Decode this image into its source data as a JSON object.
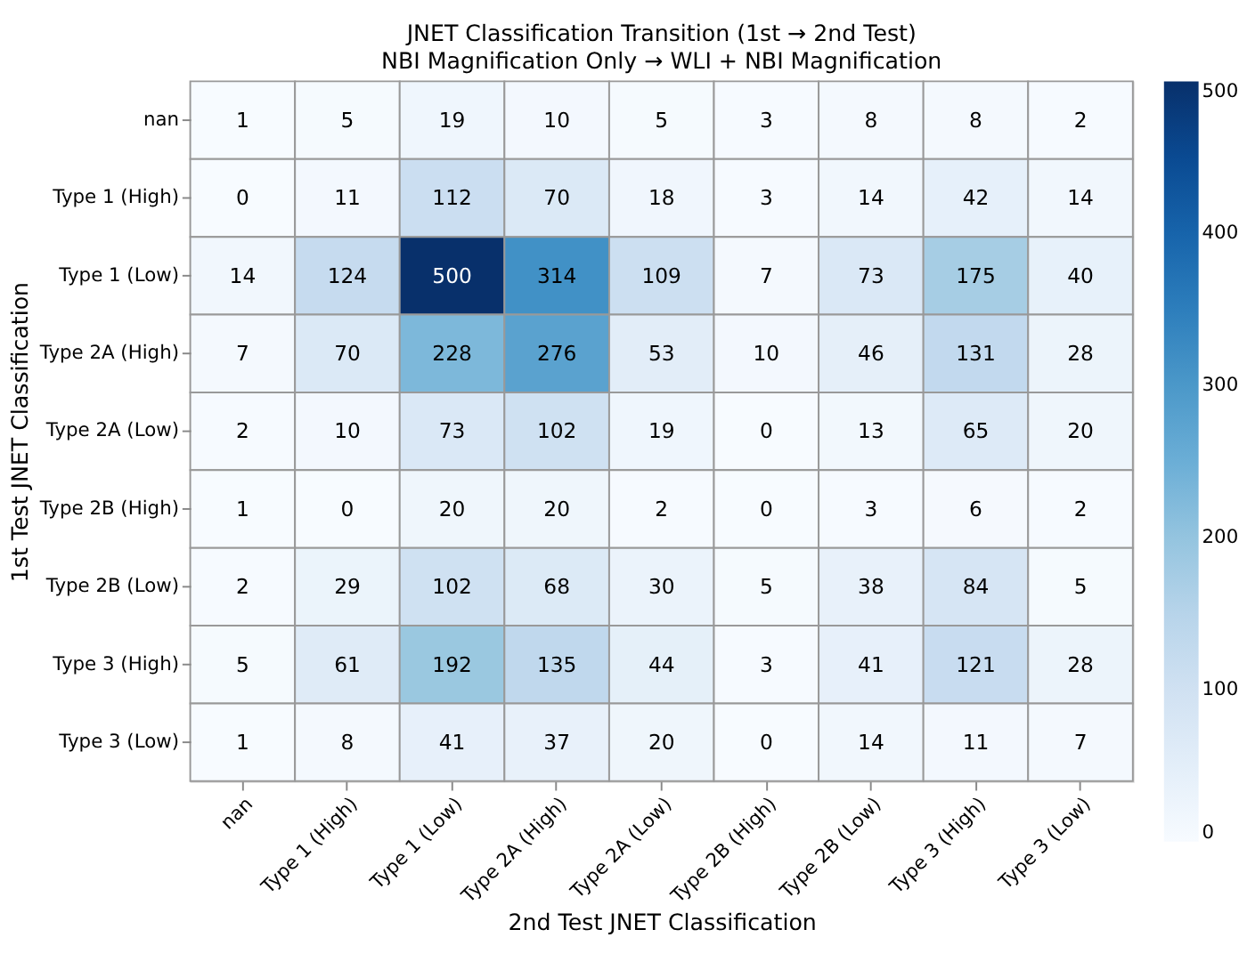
{
  "chart_data": {
    "type": "heatmap",
    "title": "JNET Classification Transition (1st → 2nd Test)",
    "subtitle": "NBI Magnification Only → WLI + NBI Magnification",
    "xlabel": "2nd Test JNET Classification",
    "ylabel": "1st Test JNET Classification",
    "categories": [
      "nan",
      "Type 1 (High)",
      "Type 1 (Low)",
      "Type 2A (High)",
      "Type 2A (Low)",
      "Type 2B (High)",
      "Type 2B (Low)",
      "Type 3 (High)",
      "Type 3 (Low)"
    ],
    "y_categories": [
      "nan",
      "Type 1 (High)",
      "Type 1 (Low)",
      "Type 2A (High)",
      "Type 2A (Low)",
      "Type 2B (High)",
      "Type 2B (Low)",
      "Type 3 (High)",
      "Type 3 (Low)"
    ],
    "cells": [
      [
        1,
        5,
        19,
        10,
        5,
        3,
        8,
        8,
        2
      ],
      [
        0,
        11,
        112,
        70,
        18,
        3,
        14,
        42,
        14
      ],
      [
        14,
        124,
        500,
        314,
        109,
        7,
        73,
        175,
        40
      ],
      [
        7,
        70,
        228,
        276,
        53,
        10,
        46,
        131,
        28
      ],
      [
        2,
        10,
        73,
        102,
        19,
        0,
        13,
        65,
        20
      ],
      [
        1,
        0,
        20,
        20,
        2,
        0,
        3,
        6,
        2
      ],
      [
        2,
        29,
        102,
        68,
        30,
        5,
        38,
        84,
        5
      ],
      [
        5,
        61,
        192,
        135,
        44,
        3,
        41,
        121,
        28
      ],
      [
        1,
        8,
        41,
        37,
        20,
        0,
        14,
        11,
        7
      ]
    ],
    "clim": [
      0,
      500
    ],
    "cticks": [
      0,
      100,
      200,
      300,
      400,
      500
    ],
    "data_labels": true
  }
}
